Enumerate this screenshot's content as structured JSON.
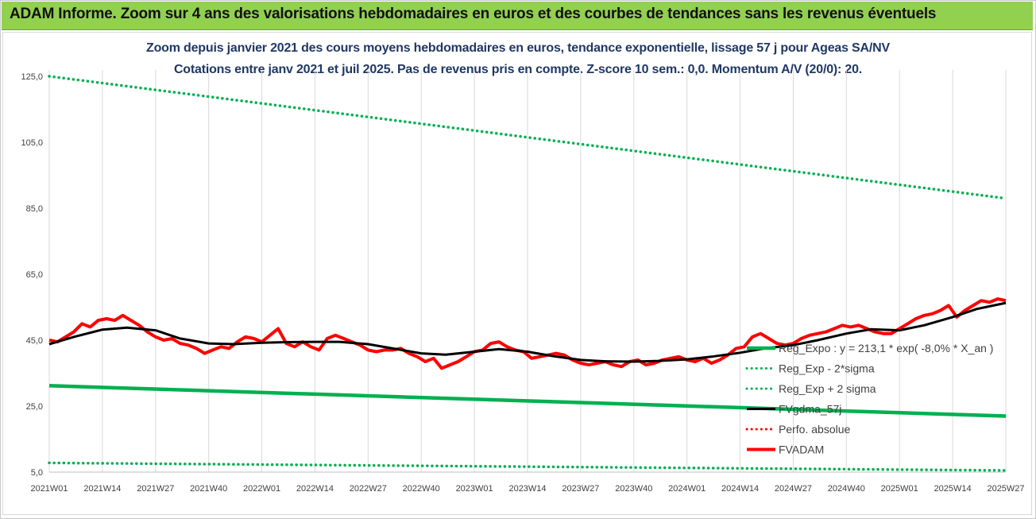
{
  "banner": {
    "title": "ADAM Informe. Zoom sur 4 ans des valorisations hebdomadaires en euros et des courbes de tendances sans les revenus éventuels"
  },
  "chart_data": {
    "type": "line",
    "title": "Zoom depuis janvier 2021 des cours moyens hebdomadaires en euros, tendance exponentielle, lissage 57 j pour Ageas SA/NV",
    "subtitle": "Cotations entre janv 2021 et juil 2025. Pas de revenus pris en compte. Z-score 10 sem.: 0,0. Momentum A/V (20/0): 20.",
    "ylim": [
      5,
      125
    ],
    "y_ticks": [
      "5,0",
      "25,0",
      "45,0",
      "65,0",
      "85,0",
      "105,0",
      "125,0"
    ],
    "x_ticks": [
      "2021W01",
      "2021W14",
      "2021W27",
      "2021W40",
      "2022W01",
      "2022W14",
      "2022W27",
      "2022W40",
      "2023W01",
      "2023W14",
      "2023W27",
      "2023W40",
      "2024W01",
      "2024W14",
      "2024W27",
      "2024W40",
      "2025W01",
      "2025W14",
      "2025W27"
    ],
    "grid": "vertical",
    "legend_position": "right",
    "colors": {
      "reg_expo": "#00b050",
      "sigma": "#00b050",
      "perfo": "#ff0000",
      "fvgdma": "#000000",
      "fvadam": "#ff0000",
      "grid": "#d9d9d9"
    },
    "series": [
      {
        "name": "Reg_Expo : y = 213,1 * exp( -8,0% *  X_an )",
        "style": "solid-thick",
        "x": [
          "2021W01",
          "2025W27"
        ],
        "values": [
          31.2,
          22.0
        ]
      },
      {
        "name": "Reg_Exp - 2*sigma",
        "style": "dotted",
        "x": [
          "2021W01",
          "2025W27"
        ],
        "values": [
          7.8,
          5.5
        ]
      },
      {
        "name": "Reg_Exp + 2 sigma",
        "style": "dotted",
        "x": [
          "2021W01",
          "2025W27"
        ],
        "values": [
          125.0,
          88.0
        ]
      },
      {
        "name": "FVgdma_57j",
        "style": "solid",
        "x": [
          "2021W01",
          "2021W07",
          "2021W14",
          "2021W20",
          "2021W27",
          "2021W33",
          "2021W40",
          "2021W46",
          "2022W01",
          "2022W07",
          "2022W14",
          "2022W20",
          "2022W27",
          "2022W33",
          "2022W40",
          "2022W46",
          "2023W01",
          "2023W07",
          "2023W14",
          "2023W20",
          "2023W27",
          "2023W33",
          "2023W40",
          "2023W46",
          "2024W01",
          "2024W07",
          "2024W14",
          "2024W20",
          "2024W27",
          "2024W33",
          "2024W40",
          "2024W46",
          "2025W01",
          "2025W07",
          "2025W14",
          "2025W20",
          "2025W27"
        ],
        "values": [
          43.8,
          46.0,
          48.2,
          48.8,
          48.0,
          45.5,
          44.0,
          43.8,
          44.2,
          44.4,
          44.5,
          44.5,
          43.8,
          42.5,
          41.0,
          40.6,
          41.5,
          42.3,
          41.5,
          40.2,
          39.0,
          38.6,
          38.5,
          38.7,
          39.2,
          40.0,
          41.2,
          42.5,
          43.5,
          45.0,
          47.0,
          48.3,
          48.0,
          49.5,
          52.0,
          54.5,
          56.3
        ]
      },
      {
        "name": "Perfo. absolue",
        "style": "dotted",
        "x": [],
        "values": []
      },
      {
        "name": "FVADAM",
        "style": "solid-thick",
        "x": [
          "2021W01",
          "2021W03",
          "2021W05",
          "2021W07",
          "2021W09",
          "2021W11",
          "2021W13",
          "2021W15",
          "2021W17",
          "2021W19",
          "2021W21",
          "2021W23",
          "2021W25",
          "2021W27",
          "2021W29",
          "2021W31",
          "2021W33",
          "2021W35",
          "2021W37",
          "2021W39",
          "2021W41",
          "2021W43",
          "2021W45",
          "2021W47",
          "2021W49",
          "2021W51",
          "2022W01",
          "2022W03",
          "2022W05",
          "2022W07",
          "2022W09",
          "2022W11",
          "2022W13",
          "2022W15",
          "2022W17",
          "2022W19",
          "2022W21",
          "2022W23",
          "2022W25",
          "2022W27",
          "2022W29",
          "2022W31",
          "2022W33",
          "2022W35",
          "2022W37",
          "2022W39",
          "2022W41",
          "2022W43",
          "2022W45",
          "2022W47",
          "2022W49",
          "2022W51",
          "2023W01",
          "2023W03",
          "2023W05",
          "2023W07",
          "2023W09",
          "2023W11",
          "2023W13",
          "2023W15",
          "2023W17",
          "2023W19",
          "2023W21",
          "2023W23",
          "2023W25",
          "2023W27",
          "2023W29",
          "2023W31",
          "2023W33",
          "2023W35",
          "2023W37",
          "2023W39",
          "2023W41",
          "2023W43",
          "2023W45",
          "2023W47",
          "2023W49",
          "2023W51",
          "2024W01",
          "2024W03",
          "2024W05",
          "2024W07",
          "2024W09",
          "2024W11",
          "2024W13",
          "2024W15",
          "2024W17",
          "2024W19",
          "2024W21",
          "2024W23",
          "2024W25",
          "2024W27",
          "2024W29",
          "2024W31",
          "2024W33",
          "2024W35",
          "2024W37",
          "2024W39",
          "2024W41",
          "2024W43",
          "2024W45",
          "2024W47",
          "2024W49",
          "2024W51",
          "2025W01",
          "2025W03",
          "2025W05",
          "2025W07",
          "2025W09",
          "2025W11",
          "2025W13",
          "2025W15",
          "2025W17",
          "2025W19",
          "2025W21",
          "2025W23",
          "2025W25",
          "2025W27"
        ],
        "values": [
          45.0,
          44.5,
          46.0,
          47.5,
          50.0,
          49.0,
          51.0,
          51.5,
          51.0,
          52.5,
          51.0,
          49.5,
          47.5,
          46.0,
          45.0,
          45.5,
          44.0,
          43.5,
          42.5,
          41.0,
          42.0,
          43.0,
          42.5,
          44.5,
          46.0,
          45.5,
          44.5,
          46.5,
          48.5,
          44.0,
          43.0,
          44.5,
          43.0,
          42.0,
          45.5,
          46.5,
          45.5,
          44.5,
          43.5,
          42.0,
          41.5,
          42.0,
          42.0,
          42.5,
          41.0,
          40.0,
          38.5,
          39.5,
          36.5,
          37.5,
          38.5,
          40.0,
          41.5,
          42.0,
          44.0,
          44.5,
          43.0,
          42.0,
          41.5,
          39.5,
          40.0,
          40.5,
          41.0,
          40.5,
          39.0,
          38.0,
          37.5,
          38.0,
          38.5,
          37.5,
          37.0,
          38.5,
          39.0,
          37.5,
          38.0,
          39.0,
          39.5,
          40.0,
          39.0,
          38.5,
          39.5,
          38.0,
          39.0,
          40.5,
          42.5,
          43.0,
          46.0,
          47.0,
          45.5,
          44.0,
          43.5,
          44.0,
          45.5,
          46.5,
          47.0,
          47.5,
          48.5,
          49.5,
          49.0,
          49.5,
          48.5,
          47.5,
          47.0,
          47.0,
          48.5,
          50.0,
          51.5,
          52.5,
          53.0,
          54.0,
          55.5,
          52.0,
          54.0,
          55.5,
          57.0,
          56.5,
          57.5,
          57.0
        ]
      }
    ]
  }
}
